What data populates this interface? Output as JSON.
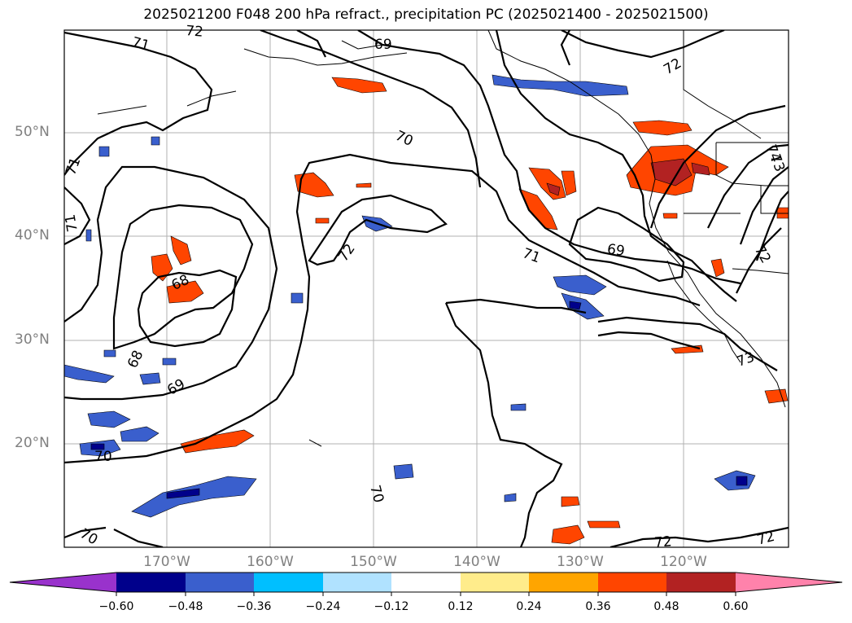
{
  "title": "2025021200 F048 200 hPa refract., precipitation PC (2025021400 - 2025021500)",
  "lat_labels": [
    {
      "text": "50°N",
      "lat": 50
    },
    {
      "text": "40°N",
      "lat": 40
    },
    {
      "text": "30°N",
      "lat": 30
    },
    {
      "text": "20°N",
      "lat": 20
    }
  ],
  "lon_labels": [
    {
      "text": "170°W",
      "lon": -170
    },
    {
      "text": "160°W",
      "lon": -160
    },
    {
      "text": "150°W",
      "lon": -150
    },
    {
      "text": "140°W",
      "lon": -140
    },
    {
      "text": "130°W",
      "lon": -130
    },
    {
      "text": "120°W",
      "lon": -120
    }
  ],
  "colorbar": {
    "ticks": [
      "−0.60",
      "−0.48",
      "−0.36",
      "−0.24",
      "−0.12",
      "0.12",
      "0.24",
      "0.36",
      "0.48",
      "0.60"
    ],
    "colors": [
      "#9932cc",
      "#00008b",
      "#3a5fcd",
      "#00bfff",
      "#b0e2ff",
      "#ffffff",
      "#ffec8b",
      "#ffa500",
      "#ff4500",
      "#b22222",
      "#ff82ab"
    ]
  },
  "contour_labels": [
    "71",
    "72",
    "69",
    "72",
    "70",
    "71",
    "71",
    "72",
    "68",
    "71",
    "69",
    "72",
    "68",
    "69",
    "73",
    "74",
    "73",
    "70",
    "70",
    "70",
    "72",
    "72"
  ]
}
